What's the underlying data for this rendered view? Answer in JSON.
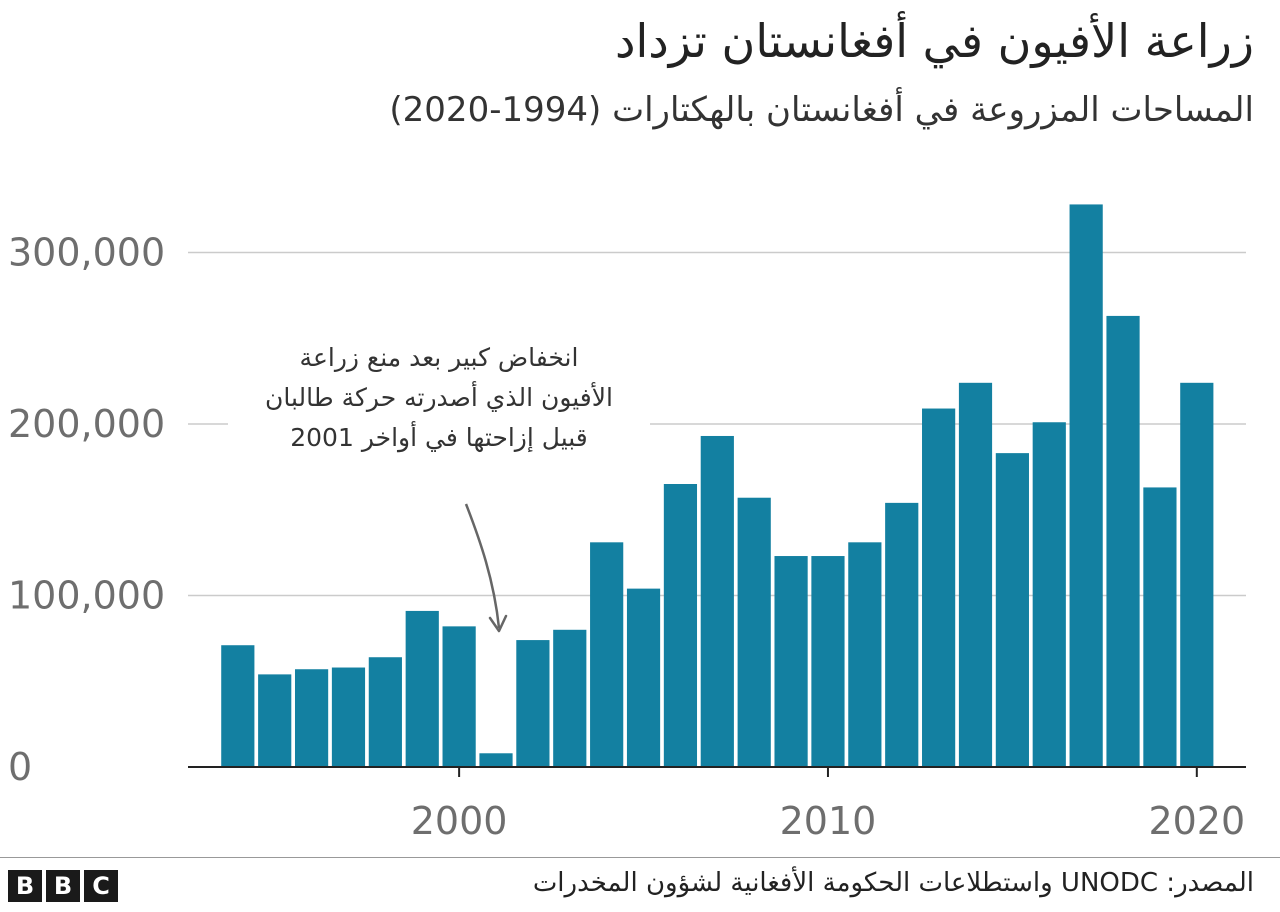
{
  "title": "زراعة الأفيون في أفغانستان تزداد",
  "subtitle": "المساحات المزروعة في أفغانستان بالهكتارات (1994-2020)",
  "annotation": {
    "lines": [
      "انخفاض كبير بعد منع زراعة",
      "الأفيون الذي أصدرته حركة طالبان",
      "قبيل إزاحتها في أواخر 2001"
    ],
    "points_to_year": 2001
  },
  "footer": {
    "source": "المصدر: UNODC واستطلاعات الحكومة الأفغانية لشؤون المخدرات",
    "logo_letters": [
      "B",
      "B",
      "C"
    ]
  },
  "colors": {
    "bar": "#1380a1",
    "grid": "#cbcbcb",
    "axis": "#222222",
    "annotation_arrow": "#666666"
  },
  "chart_data": {
    "type": "bar",
    "x": [
      1994,
      1995,
      1996,
      1997,
      1998,
      1999,
      2000,
      2001,
      2002,
      2003,
      2004,
      2005,
      2006,
      2007,
      2008,
      2009,
      2010,
      2011,
      2012,
      2013,
      2014,
      2015,
      2016,
      2017,
      2018,
      2019,
      2020
    ],
    "values": [
      71000,
      54000,
      57000,
      58000,
      64000,
      91000,
      82000,
      8000,
      74000,
      80000,
      131000,
      104000,
      165000,
      193000,
      157000,
      123000,
      123000,
      131000,
      154000,
      209000,
      224000,
      183000,
      201000,
      328000,
      263000,
      163000,
      224000
    ],
    "ylim": [
      0,
      330000
    ],
    "xlim": [
      1993.3,
      2020.9
    ],
    "yticks": [
      0,
      100000,
      200000,
      300000
    ],
    "ytick_labels": [
      "0",
      "100,000",
      "200,000",
      "300,000"
    ],
    "xticks": [
      2000,
      2010,
      2020
    ],
    "xtick_labels": [
      "2000",
      "2010",
      "2020"
    ],
    "grid": true,
    "legend": "none"
  }
}
